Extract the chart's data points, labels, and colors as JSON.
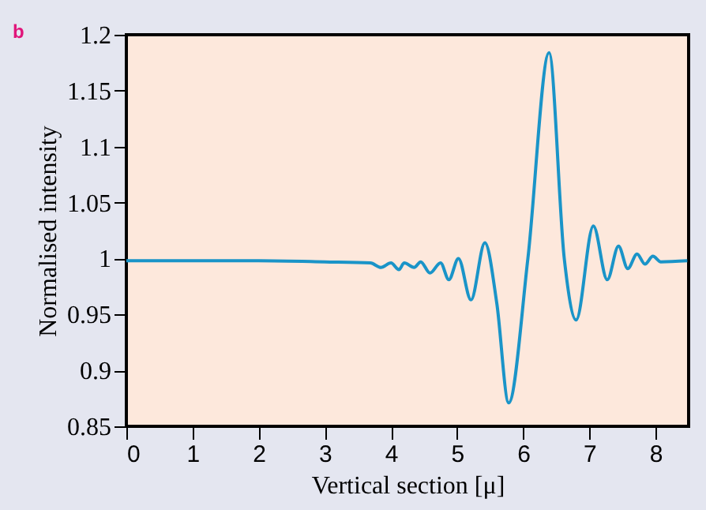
{
  "chart_data": {
    "type": "line",
    "xlabel": "Vertical section [μ]",
    "ylabel": "Normalised intensity",
    "annotations": [
      "b"
    ],
    "xlim": [
      0,
      8.5
    ],
    "ylim": [
      0.85,
      1.2
    ],
    "xticks": [
      0,
      1,
      2,
      3,
      4,
      5,
      6,
      7,
      8
    ],
    "yticks": [
      0.85,
      0.9,
      0.95,
      1,
      1.05,
      1.1,
      1.15,
      1.2
    ],
    "grid": false,
    "marker": "none",
    "line_style": "solid",
    "series": [
      {
        "color": "#1a94c8",
        "x": [
          0,
          1,
          2,
          3,
          3.69,
          3.85,
          4.0,
          4.12,
          4.2,
          4.35,
          4.45,
          4.59,
          4.75,
          4.875,
          5.02,
          5.21,
          5.42,
          5.6,
          5.78,
          6.07,
          6.39,
          6.62,
          6.8,
          7.06,
          7.27,
          7.44,
          7.58,
          7.72,
          7.84,
          7.96,
          8.08,
          8.48
        ],
        "values": [
          0.998,
          0.998,
          0.998,
          0.997,
          0.996,
          0.992,
          0.996,
          0.99,
          0.996,
          0.992,
          0.997,
          0.987,
          0.996,
          0.981,
          1.0,
          0.963,
          1.014,
          0.96,
          0.871,
          1.0,
          1.184,
          1.0,
          0.945,
          1.029,
          0.981,
          1.011,
          0.991,
          1.004,
          0.995,
          1.002,
          0.997,
          0.998
        ]
      }
    ]
  }
}
